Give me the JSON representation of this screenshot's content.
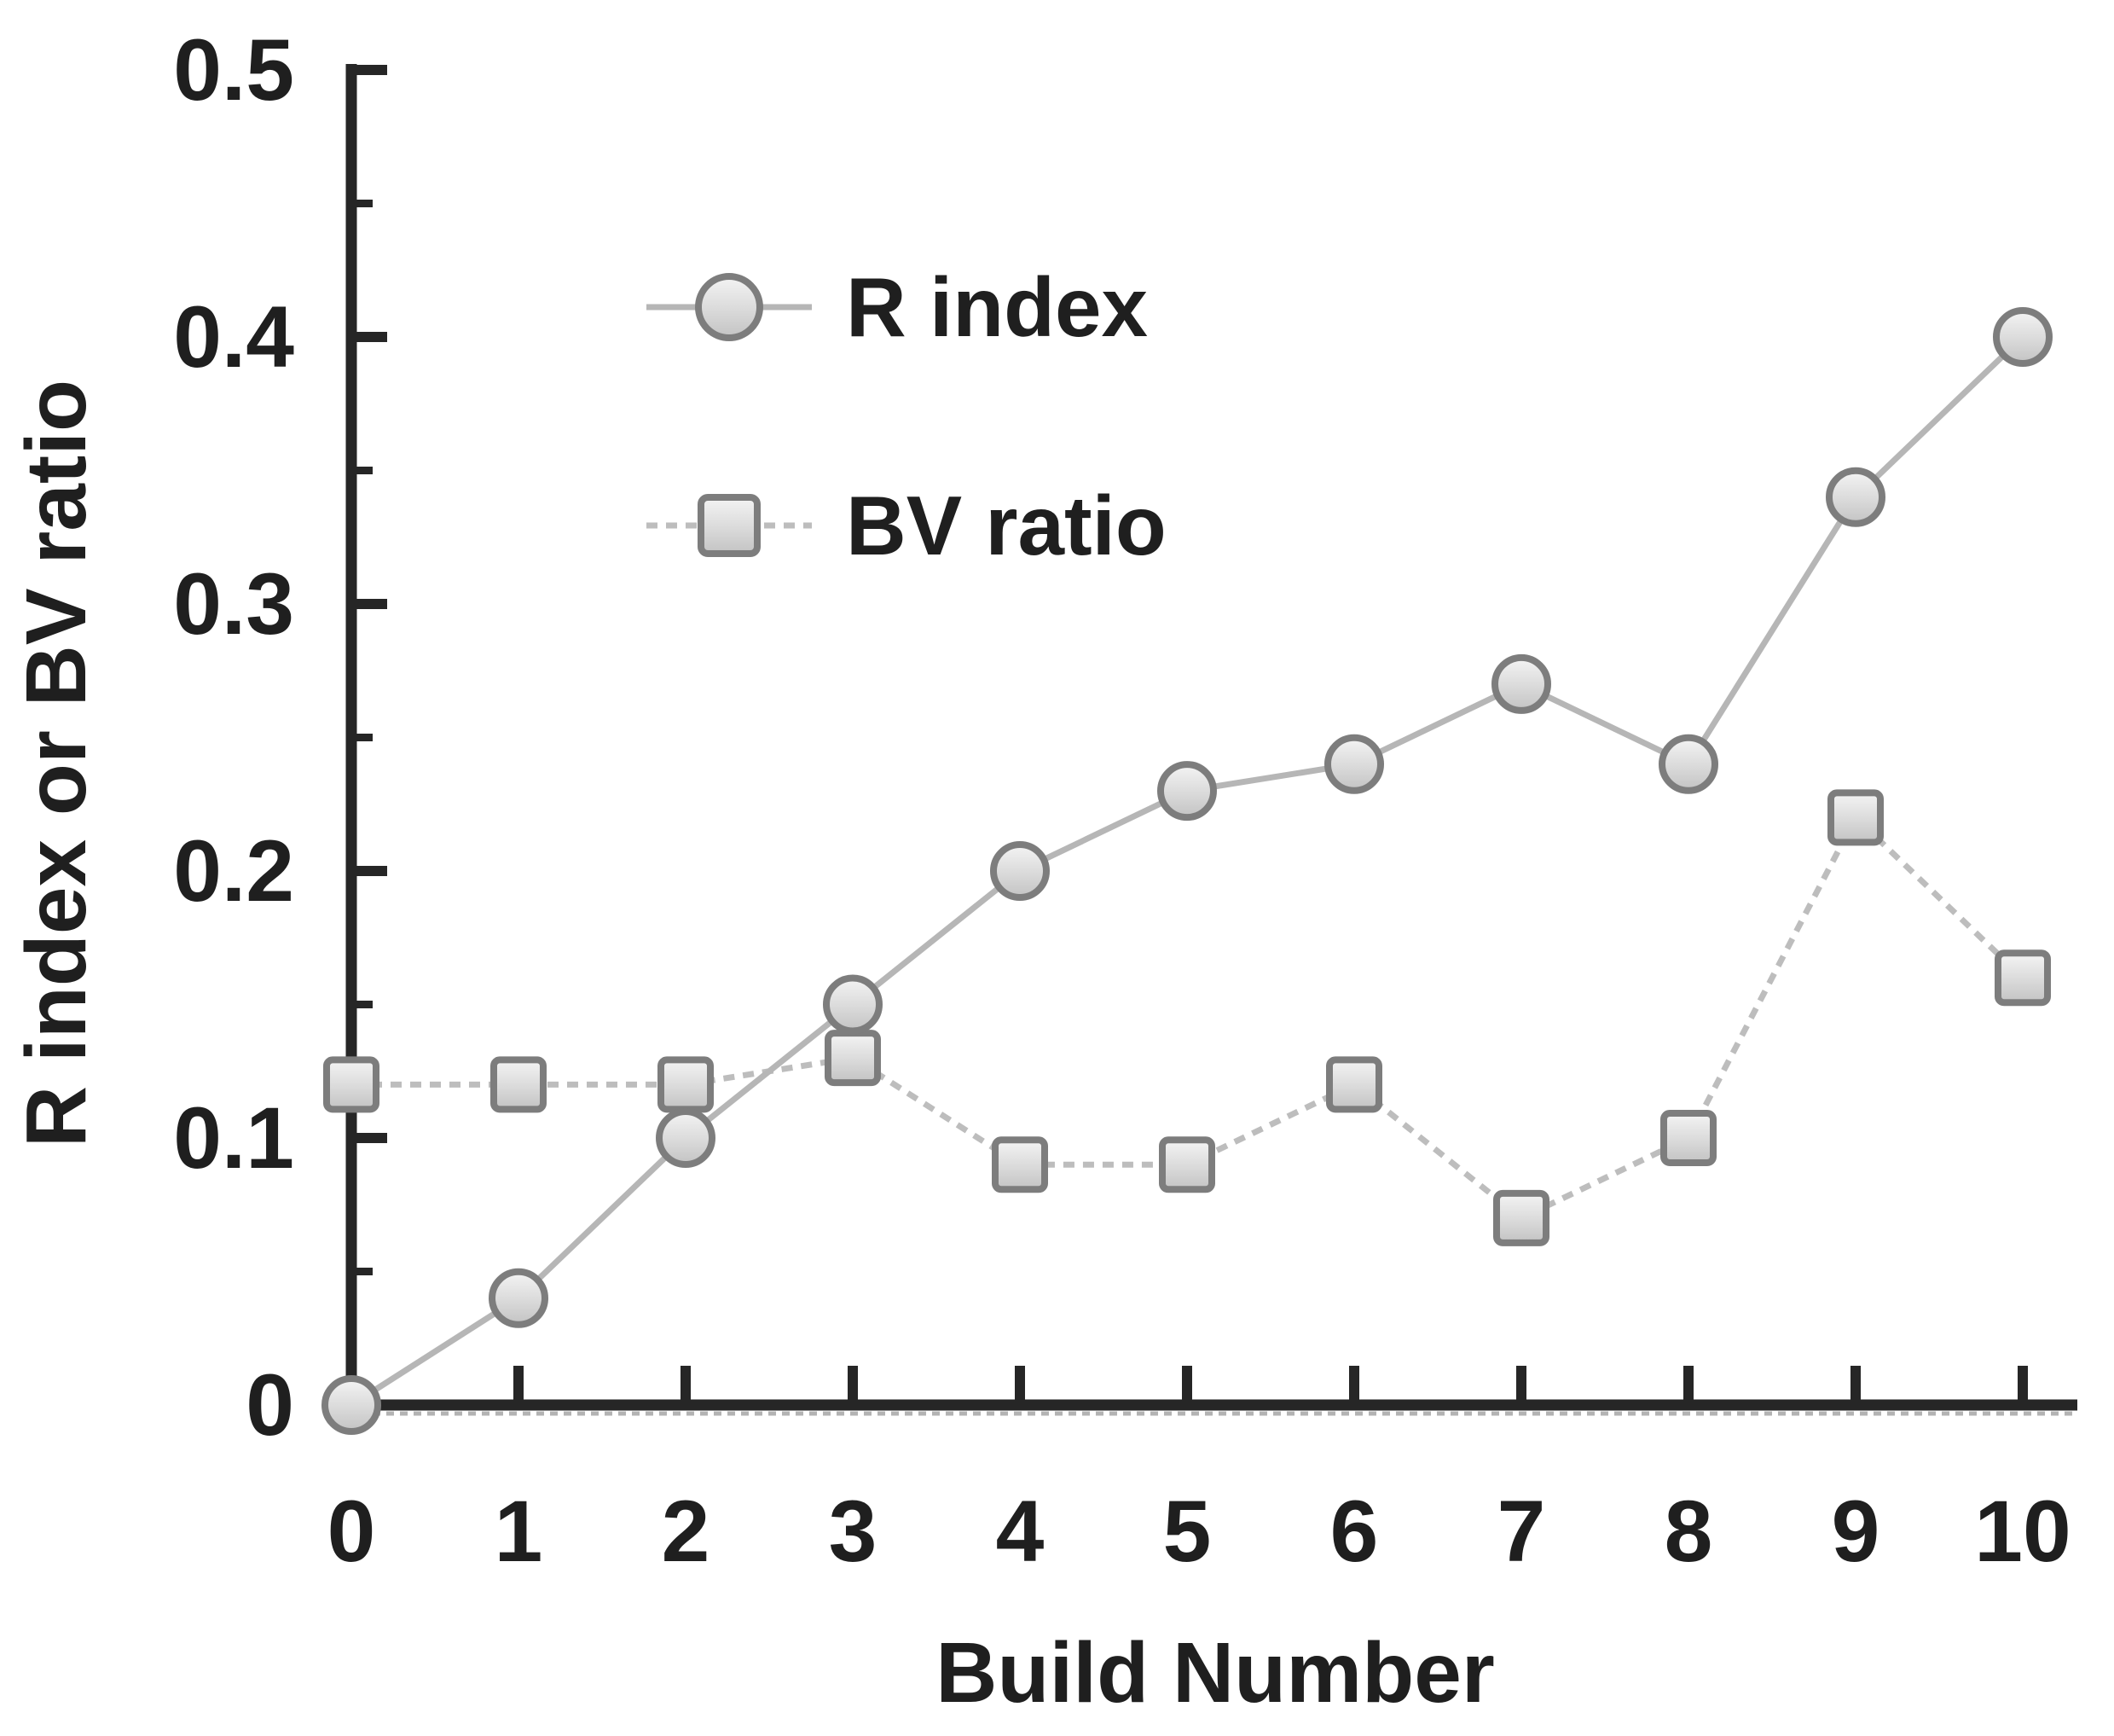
{
  "figure": {
    "background": "#ffffff",
    "text_color": "#1f1f1f",
    "axis_color": "#262626",
    "line_color": "#b6b6b6",
    "marker_fill": "#d9d9d9",
    "marker_stroke": "#7d7d7d"
  },
  "chart_data": {
    "type": "line",
    "title": "",
    "xlabel": "Build Number",
    "ylabel": "R index or BV ratio",
    "x": [
      0,
      1,
      2,
      3,
      4,
      5,
      6,
      7,
      8,
      9,
      10
    ],
    "x_tick_labels": [
      "0",
      "1",
      "2",
      "3",
      "4",
      "5",
      "6",
      "7",
      "8",
      "9",
      "10"
    ],
    "xlim": [
      0,
      10
    ],
    "ylim": [
      0,
      0.5
    ],
    "y_major_ticks": [
      0,
      0.1,
      0.2,
      0.3,
      0.4,
      0.5
    ],
    "y_tick_labels": [
      "0",
      "0.1",
      "0.2",
      "0.3",
      "0.4",
      "0.5"
    ],
    "y_minor_tick_step": 0.05,
    "grid": false,
    "legend_position": "upper-left-inside",
    "series": [
      {
        "name": "R index",
        "marker": "circle",
        "line_style": "solid",
        "values": [
          0,
          0.04,
          0.1,
          0.15,
          0.2,
          0.23,
          0.24,
          0.27,
          0.24,
          0.34,
          0.4
        ]
      },
      {
        "name": "BV ratio",
        "marker": "square",
        "line_style": "dashed",
        "values": [
          0.12,
          0.12,
          0.12,
          0.13,
          0.09,
          0.09,
          0.12,
          0.07,
          0.1,
          0.22,
          0.16
        ]
      }
    ]
  }
}
